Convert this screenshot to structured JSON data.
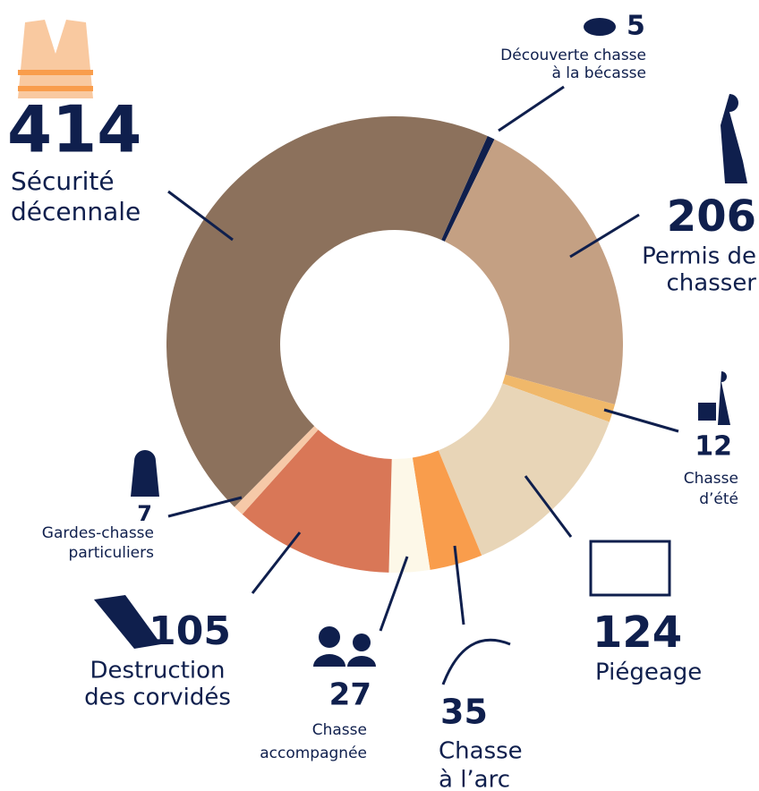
{
  "chart_data": {
    "type": "donut",
    "categories": [
      [
        "Découverte chasse",
        "à la bécasse"
      ],
      [
        "Permis de",
        "chasser"
      ],
      [
        "Chasse",
        "d’été"
      ],
      [
        "Piégeage"
      ],
      [
        "Chasse",
        "à l’arc"
      ],
      [
        "Chasse",
        "accompagnée"
      ],
      [
        "Destruction",
        "des corvidés"
      ],
      [
        "Gardes-chasse",
        "particuliers"
      ],
      [
        "Sécurité",
        "décennale"
      ]
    ],
    "values": [
      5,
      206,
      12,
      124,
      35,
      27,
      105,
      7,
      414
    ],
    "colors": [
      "#0f1f4d",
      "#c4a083",
      "#f0b86a",
      "#e8d5b7",
      "#f99d4c",
      "#fdf8e8",
      "#d97757",
      "#f6c9a8",
      "#8c715c"
    ]
  }
}
